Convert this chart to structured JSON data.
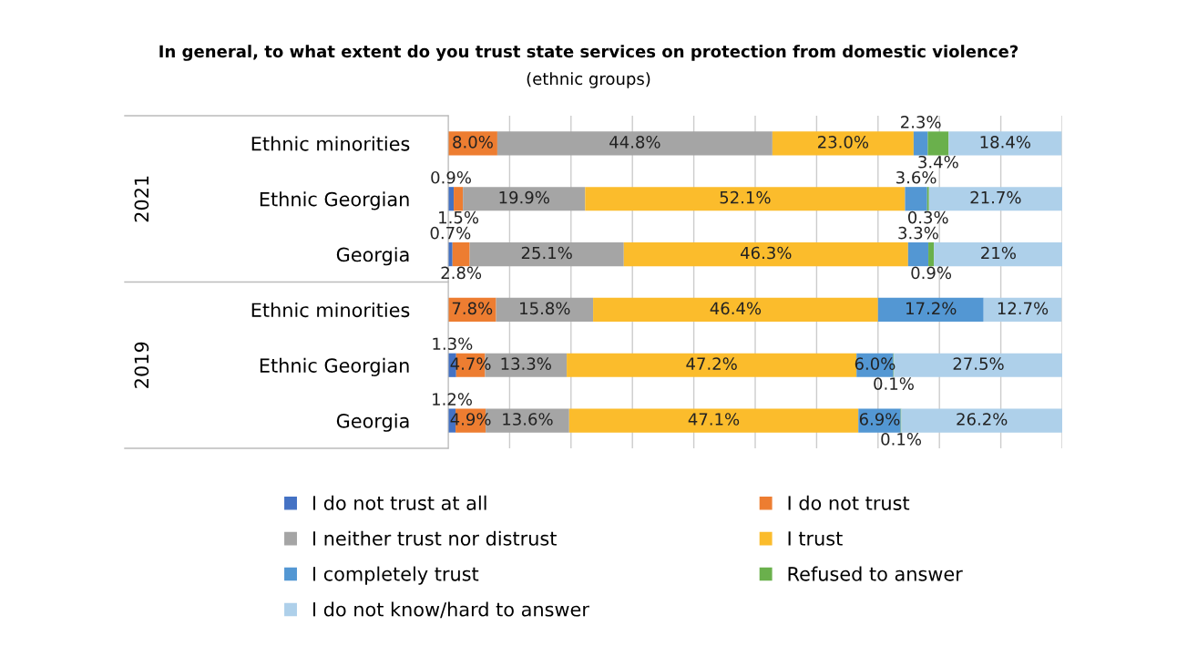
{
  "chart_data": {
    "type": "bar",
    "orientation": "horizontal",
    "stacked": true,
    "title": "In general, to what extent do you trust state services on protection from domestic violence?",
    "subtitle": "(ethnic groups)",
    "categories": [
      "Ethnic minorities",
      "Ethnic Georgian",
      "Georgia",
      "Ethnic minorities",
      "Ethnic Georgian",
      "Georgia"
    ],
    "annotations": [
      "2021",
      "2019"
    ],
    "xlim": [
      0,
      100
    ],
    "xticks": [
      {
        "value": 0,
        "label": null
      },
      {
        "value": 10,
        "label": null
      },
      {
        "value": 20,
        "label": null
      },
      {
        "value": 30,
        "label": null
      },
      {
        "value": 40,
        "label": null
      },
      {
        "value": 50,
        "label": null
      },
      {
        "value": 60,
        "label": null
      },
      {
        "value": 70,
        "label": null
      },
      {
        "value": 80,
        "label": null
      },
      {
        "value": 90,
        "label": null
      },
      {
        "value": 100,
        "label": null
      }
    ],
    "tick_labels": "y",
    "grid": "x",
    "legend": "bottom",
    "series": [
      {
        "name": "I do not trust at all",
        "color": "#4472c4",
        "values": [
          null,
          0.9,
          0.7,
          null,
          1.3,
          1.2
        ],
        "value_labels": [
          null,
          "0.9%",
          "0.7%",
          null,
          "1.3%",
          "1.2%"
        ]
      },
      {
        "name": "I do not trust",
        "color": "#ed7d31",
        "values": [
          8.0,
          1.5,
          2.8,
          7.8,
          4.7,
          4.9
        ],
        "value_labels": [
          "8.0%",
          "1.5%",
          "2.8%",
          "7.8%",
          "4.7%",
          "4.9%"
        ]
      },
      {
        "name": "I neither trust nor distrust",
        "color": "#a5a5a5",
        "values": [
          44.8,
          19.9,
          25.1,
          15.8,
          13.3,
          13.6
        ],
        "value_labels": [
          "44.8%",
          "19.9%",
          "25.1%",
          "15.8%",
          "13.3%",
          "13.6%"
        ]
      },
      {
        "name": "I trust",
        "color": "#fbbc2c",
        "values": [
          23.0,
          52.1,
          46.3,
          46.4,
          47.2,
          47.1
        ],
        "value_labels": [
          "23.0%",
          "52.1%",
          "46.3%",
          "46.4%",
          "47.2%",
          "47.1%"
        ]
      },
      {
        "name": "I completely trust",
        "color": "#5397d3",
        "values": [
          2.3,
          3.6,
          3.3,
          17.2,
          6.0,
          6.9
        ],
        "value_labels": [
          "2.3%",
          "3.6%",
          "3.3%",
          "17.2%",
          "6.0%",
          "6.9%"
        ]
      },
      {
        "name": "Refused to answer",
        "color": "#6ab04c",
        "values": [
          3.4,
          0.3,
          0.9,
          null,
          0.1,
          0.1
        ],
        "value_labels": [
          "3.4%",
          "0.3%",
          "0.9%",
          null,
          "0.1%",
          "0.1%"
        ]
      },
      {
        "name": "I do not know/hard to answer",
        "color": "#aed0ea",
        "values": [
          18.4,
          21.7,
          21,
          12.7,
          27.5,
          26.2
        ],
        "value_labels": [
          "18.4%",
          "21.7%",
          "21%",
          "12.7%",
          "27.5%",
          "26.2%"
        ]
      }
    ]
  }
}
